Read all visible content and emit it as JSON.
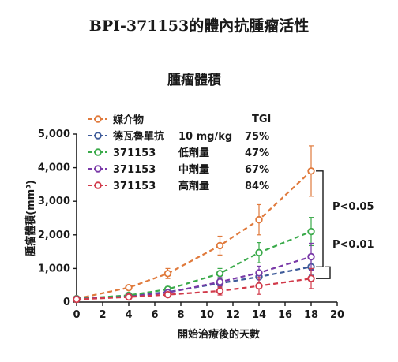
{
  "page": {
    "title": "BPI-371153的體內抗腫瘤活性"
  },
  "chart_data": {
    "type": "line",
    "title": "腫瘤體積",
    "xlabel": "開始治療後的天數",
    "ylabel": "腫瘤體積(mm³)",
    "xlim": [
      0,
      20
    ],
    "ylim": [
      0,
      5000
    ],
    "x_ticks": [
      "0",
      "2",
      "4",
      "6",
      "8",
      "10",
      "12",
      "14",
      "16",
      "18",
      "20"
    ],
    "y_ticks": [
      "0",
      "1,000",
      "2,000",
      "3,000",
      "4,000",
      "5,000"
    ],
    "legend_header": "TGI",
    "legend_position": "top-left",
    "series": [
      {
        "name": "媒介物",
        "dose": "",
        "tgi": "",
        "color": "#e07a3c",
        "x": [
          0,
          4,
          7,
          11,
          14,
          18
        ],
        "y": [
          100,
          430,
          850,
          1680,
          2450,
          3900
        ],
        "err": [
          30,
          60,
          150,
          280,
          450,
          750
        ]
      },
      {
        "name": "德瓦魯單抗",
        "dose": "10 mg/kg",
        "tgi": "75%",
        "color": "#3d5a99",
        "x": [
          0,
          4,
          7,
          11,
          14,
          18
        ],
        "y": [
          90,
          180,
          300,
          560,
          750,
          1050
        ],
        "err": [
          20,
          40,
          60,
          120,
          180,
          250
        ]
      },
      {
        "name": "371153",
        "dose": "低劑量",
        "tgi": "47%",
        "color": "#3aaa4a",
        "x": [
          0,
          4,
          7,
          11,
          14,
          18
        ],
        "y": [
          100,
          200,
          380,
          850,
          1470,
          2100
        ],
        "err": [
          20,
          50,
          80,
          150,
          300,
          420
        ]
      },
      {
        "name": "371153",
        "dose": "中劑量",
        "tgi": "67%",
        "color": "#7a3aa8",
        "x": [
          0,
          4,
          7,
          11,
          14,
          18
        ],
        "y": [
          90,
          160,
          280,
          600,
          870,
          1350
        ],
        "err": [
          20,
          40,
          60,
          130,
          200,
          400
        ]
      },
      {
        "name": "371153",
        "dose": "高劑量",
        "tgi": "84%",
        "color": "#d13a4a",
        "x": [
          0,
          4,
          7,
          11,
          14,
          18
        ],
        "y": [
          80,
          150,
          220,
          330,
          480,
          700
        ],
        "err": [
          20,
          30,
          50,
          120,
          250,
          300
        ]
      }
    ],
    "annotations": [
      "P<0.05",
      "P<0.01"
    ]
  }
}
